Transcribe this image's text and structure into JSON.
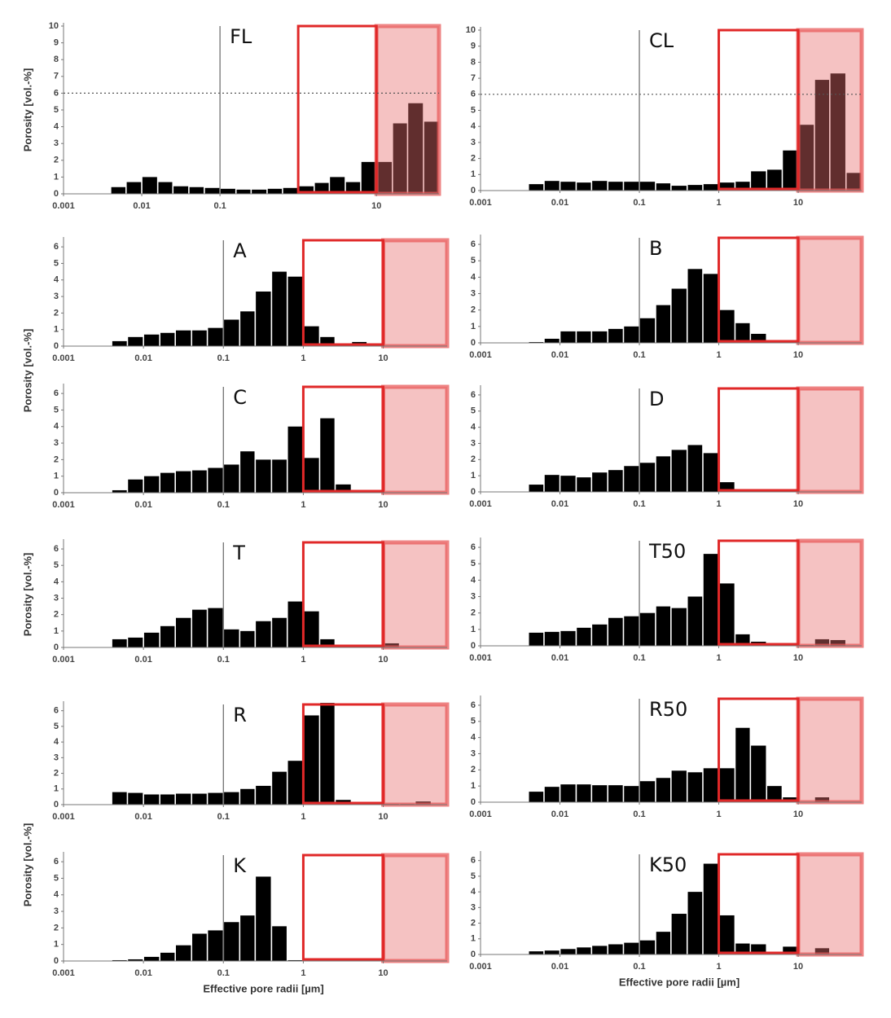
{
  "chart_data": [
    {
      "type": "histogram",
      "title": "FL",
      "y_label": "Porosity [vol.-%]",
      "color": "#000000",
      "bins": [
        0.004,
        0.0063,
        0.01,
        0.016,
        0.025,
        0.04,
        0.063,
        0.1,
        0.16,
        0.25,
        0.4,
        0.63,
        1,
        1.6,
        2.5,
        4,
        6.3,
        10,
        16,
        25,
        40,
        63
      ],
      "values": [
        0.4,
        0.7,
        1.0,
        0.7,
        0.45,
        0.4,
        0.35,
        0.3,
        0.25,
        0.25,
        0.3,
        0.35,
        0.45,
        0.65,
        1.0,
        0.7,
        1.9,
        1.9,
        4.2,
        5.4,
        4.3
      ],
      "xscale": "log",
      "xlim": [
        0.001,
        63
      ],
      "xticks": [
        0.001,
        0.01,
        0.1,
        10
      ],
      "ylim": [
        0,
        10
      ],
      "yticks": [
        0,
        1,
        2,
        3,
        4,
        5,
        6,
        7,
        8,
        9,
        10
      ],
      "hline": 6,
      "vline": 0.1,
      "highlight_xlim": [
        1,
        10
      ],
      "shade_xlim": [
        10,
        63
      ]
    },
    {
      "type": "histogram",
      "title": "CL",
      "color": "#000000",
      "bins": [
        0.004,
        0.0063,
        0.01,
        0.016,
        0.025,
        0.04,
        0.063,
        0.1,
        0.16,
        0.25,
        0.4,
        0.63,
        1,
        1.6,
        2.5,
        4,
        6.3,
        10,
        16,
        25,
        40,
        63
      ],
      "values": [
        0.4,
        0.6,
        0.55,
        0.5,
        0.6,
        0.55,
        0.55,
        0.55,
        0.45,
        0.3,
        0.35,
        0.4,
        0.5,
        0.55,
        1.2,
        1.3,
        2.5,
        4.1,
        6.9,
        7.3,
        1.1
      ],
      "xscale": "log",
      "xlim": [
        0.001,
        63
      ],
      "xticks": [
        0.001,
        0.01,
        0.1,
        1,
        10
      ],
      "ylim": [
        0,
        10
      ],
      "yticks": [
        0,
        1,
        2,
        3,
        4,
        5,
        6,
        7,
        8,
        9,
        10
      ],
      "hline": 6,
      "vline": 0.1,
      "highlight_xlim": [
        1,
        10
      ],
      "shade_xlim": [
        10,
        63
      ]
    },
    {
      "type": "histogram",
      "title": "A",
      "y_label": "Porosity [vol.-%]",
      "color": "#000000",
      "bins": [
        0.004,
        0.0063,
        0.01,
        0.016,
        0.025,
        0.04,
        0.063,
        0.1,
        0.16,
        0.25,
        0.4,
        0.63,
        1,
        1.6,
        2.5,
        4,
        6.3,
        10,
        16,
        25,
        40,
        63
      ],
      "values": [
        0.3,
        0.55,
        0.7,
        0.8,
        0.95,
        0.95,
        1.1,
        1.6,
        2.1,
        3.3,
        4.5,
        4.2,
        1.2,
        0.55,
        0.15,
        0.25,
        0.15,
        0,
        0,
        0,
        0
      ],
      "xscale": "log",
      "xlim": [
        0.001,
        63
      ],
      "xticks": [
        0.001,
        0.01,
        0.1,
        1,
        10
      ],
      "ylim": [
        0,
        6.4
      ],
      "yticks": [
        0,
        1,
        2,
        3,
        4,
        5,
        6
      ],
      "vline": 0.1,
      "highlight_xlim": [
        1,
        10
      ],
      "shade_xlim": [
        10,
        63
      ]
    },
    {
      "type": "histogram",
      "title": "B",
      "color": "#000000",
      "bins": [
        0.004,
        0.0063,
        0.01,
        0.016,
        0.025,
        0.04,
        0.063,
        0.1,
        0.16,
        0.25,
        0.4,
        0.63,
        1,
        1.6,
        2.5,
        4,
        6.3,
        10,
        16,
        25,
        40,
        63
      ],
      "values": [
        0.05,
        0.25,
        0.7,
        0.7,
        0.7,
        0.85,
        1.0,
        1.5,
        2.3,
        3.3,
        4.5,
        4.2,
        2.0,
        1.2,
        0.55,
        0.1,
        0.1,
        0,
        0,
        0,
        0
      ],
      "xscale": "log",
      "xlim": [
        0.001,
        63
      ],
      "xticks": [
        0.001,
        0.01,
        0.1,
        1,
        10
      ],
      "ylim": [
        0,
        6.4
      ],
      "yticks": [
        0,
        1,
        2,
        3,
        4,
        5,
        6
      ],
      "vline": 0.1,
      "highlight_xlim": [
        1,
        10
      ],
      "shade_xlim": [
        10,
        63
      ]
    },
    {
      "type": "histogram",
      "title": "C",
      "color": "#000000",
      "bins": [
        0.004,
        0.0063,
        0.01,
        0.016,
        0.025,
        0.04,
        0.063,
        0.1,
        0.16,
        0.25,
        0.4,
        0.63,
        1,
        1.6,
        2.5,
        4,
        6.3,
        10,
        16,
        25,
        40,
        63
      ],
      "values": [
        0.15,
        0.8,
        1.0,
        1.2,
        1.3,
        1.35,
        1.5,
        1.7,
        2.5,
        2.0,
        2.0,
        4.0,
        2.1,
        4.5,
        0.5,
        0.1,
        0.05,
        0,
        0,
        0,
        0
      ],
      "xscale": "log",
      "xlim": [
        0.001,
        63
      ],
      "xticks": [
        0.001,
        0.01,
        0.1,
        1,
        10
      ],
      "ylim": [
        0,
        6.4
      ],
      "yticks": [
        0,
        1,
        2,
        3,
        4,
        5,
        6
      ],
      "vline": 0.1,
      "highlight_xlim": [
        1,
        10
      ],
      "shade_xlim": [
        10,
        63
      ]
    },
    {
      "type": "histogram",
      "title": "D",
      "color": "#000000",
      "bins": [
        0.004,
        0.0063,
        0.01,
        0.016,
        0.025,
        0.04,
        0.063,
        0.1,
        0.16,
        0.25,
        0.4,
        0.63,
        1,
        1.6,
        2.5,
        4,
        6.3,
        10,
        16,
        25,
        40,
        63
      ],
      "values": [
        0.45,
        1.05,
        1.0,
        0.9,
        1.2,
        1.35,
        1.6,
        1.8,
        2.2,
        2.6,
        2.9,
        2.4,
        0.6,
        0.1,
        0.05,
        0.05,
        0.05,
        0,
        0,
        0,
        0
      ],
      "xscale": "log",
      "xlim": [
        0.001,
        63
      ],
      "xticks": [
        0.001,
        0.01,
        0.1,
        1,
        10
      ],
      "ylim": [
        0,
        6.4
      ],
      "yticks": [
        0,
        1,
        2,
        3,
        4,
        5,
        6
      ],
      "vline": 0.1,
      "highlight_xlim": [
        1,
        10
      ],
      "shade_xlim": [
        10,
        63
      ]
    },
    {
      "type": "histogram",
      "title": "T",
      "y_label": "Porosity [vol.-%]",
      "color": "#000000",
      "bins": [
        0.004,
        0.0063,
        0.01,
        0.016,
        0.025,
        0.04,
        0.063,
        0.1,
        0.16,
        0.25,
        0.4,
        0.63,
        1,
        1.6,
        2.5,
        4,
        6.3,
        10,
        16,
        25,
        40,
        63
      ],
      "values": [
        0.5,
        0.6,
        0.9,
        1.3,
        1.8,
        2.3,
        2.4,
        1.1,
        1.0,
        1.6,
        1.8,
        2.8,
        2.2,
        0.5,
        0.1,
        0.1,
        0.1,
        0.25,
        0,
        0,
        0
      ],
      "xscale": "log",
      "xlim": [
        0.001,
        63
      ],
      "xticks": [
        0.001,
        0.01,
        0.1,
        1,
        10
      ],
      "ylim": [
        0,
        6.4
      ],
      "yticks": [
        0,
        1,
        2,
        3,
        4,
        5,
        6
      ],
      "vline": 0.1,
      "highlight_xlim": [
        1,
        10
      ],
      "shade_xlim": [
        10,
        63
      ]
    },
    {
      "type": "histogram",
      "title": "T50",
      "color": "#000000",
      "bins": [
        0.004,
        0.0063,
        0.01,
        0.016,
        0.025,
        0.04,
        0.063,
        0.1,
        0.16,
        0.25,
        0.4,
        0.63,
        1,
        1.6,
        2.5,
        4,
        6.3,
        10,
        16,
        25,
        40,
        63
      ],
      "values": [
        0.8,
        0.85,
        0.9,
        1.1,
        1.3,
        1.7,
        1.8,
        2.0,
        2.4,
        2.3,
        3.0,
        5.6,
        3.8,
        0.7,
        0.25,
        0.1,
        0.1,
        0.05,
        0.4,
        0.35,
        0
      ],
      "xscale": "log",
      "xlim": [
        0.001,
        63
      ],
      "xticks": [
        0.001,
        0.01,
        0.1,
        1,
        10
      ],
      "ylim": [
        0,
        6.4
      ],
      "yticks": [
        0,
        1,
        2,
        3,
        4,
        5,
        6
      ],
      "vline": 0.1,
      "highlight_xlim": [
        1,
        10
      ],
      "shade_xlim": [
        10,
        63
      ]
    },
    {
      "type": "histogram",
      "title": "R",
      "color": "#000000",
      "bins": [
        0.004,
        0.0063,
        0.01,
        0.016,
        0.025,
        0.04,
        0.063,
        0.1,
        0.16,
        0.25,
        0.4,
        0.63,
        1,
        1.6,
        2.5,
        4,
        6.3,
        10,
        16,
        25,
        40,
        63
      ],
      "values": [
        0.8,
        0.75,
        0.65,
        0.65,
        0.7,
        0.7,
        0.75,
        0.8,
        1.0,
        1.2,
        2.1,
        2.8,
        5.7,
        6.5,
        0.3,
        0.1,
        0.1,
        0.05,
        0.05,
        0.2,
        0
      ],
      "xscale": "log",
      "xlim": [
        0.001,
        63
      ],
      "xticks": [
        0.001,
        0.01,
        0.1,
        1,
        10
      ],
      "ylim": [
        0,
        6.4
      ],
      "yticks": [
        0,
        1,
        2,
        3,
        4,
        5,
        6
      ],
      "vline": 0.1,
      "highlight_xlim": [
        1,
        10
      ],
      "shade_xlim": [
        10,
        63
      ]
    },
    {
      "type": "histogram",
      "title": "R50",
      "color": "#000000",
      "bins": [
        0.004,
        0.0063,
        0.01,
        0.016,
        0.025,
        0.04,
        0.063,
        0.1,
        0.16,
        0.25,
        0.4,
        0.63,
        1,
        1.6,
        2.5,
        4,
        6.3,
        10,
        16,
        25,
        40,
        63
      ],
      "values": [
        0.65,
        0.95,
        1.1,
        1.1,
        1.05,
        1.05,
        1.0,
        1.3,
        1.5,
        1.95,
        1.85,
        2.1,
        2.1,
        4.6,
        3.5,
        1.0,
        0.3,
        0,
        0.3,
        0,
        0
      ],
      "xscale": "log",
      "xlim": [
        0.001,
        63
      ],
      "xticks": [
        0.001,
        0.01,
        0.1,
        1,
        10
      ],
      "ylim": [
        0,
        6.4
      ],
      "yticks": [
        0,
        1,
        2,
        3,
        4,
        5,
        6
      ],
      "vline": 0.1,
      "highlight_xlim": [
        1,
        10
      ],
      "shade_xlim": [
        10,
        63
      ]
    },
    {
      "type": "histogram",
      "title": "K",
      "y_label": "Porosity [vol.-%]",
      "x_label": "Effective pore radii [µm]",
      "color": "#000000",
      "bins": [
        0.004,
        0.0063,
        0.01,
        0.016,
        0.025,
        0.04,
        0.063,
        0.1,
        0.16,
        0.25,
        0.4,
        0.63,
        1,
        1.6,
        2.5,
        4,
        6.3,
        10,
        16,
        25,
        40,
        63
      ],
      "values": [
        0.05,
        0.1,
        0.25,
        0.5,
        0.95,
        1.65,
        1.85,
        2.35,
        2.75,
        5.1,
        2.1,
        0.05,
        0,
        0,
        0,
        0,
        0,
        0,
        0,
        0,
        0
      ],
      "xscale": "log",
      "xlim": [
        0.001,
        63
      ],
      "xticks": [
        0.001,
        0.01,
        0.1,
        1,
        10
      ],
      "ylim": [
        0,
        6.4
      ],
      "yticks": [
        0,
        1,
        2,
        3,
        4,
        5,
        6
      ],
      "vline": 0.1,
      "highlight_xlim": [
        1,
        10
      ],
      "shade_xlim": [
        10,
        63
      ]
    },
    {
      "type": "histogram",
      "title": "K50",
      "x_label": "Effective pore radii [µm]",
      "color": "#000000",
      "bins": [
        0.004,
        0.0063,
        0.01,
        0.016,
        0.025,
        0.04,
        0.063,
        0.1,
        0.16,
        0.25,
        0.4,
        0.63,
        1,
        1.6,
        2.5,
        4,
        6.3,
        10,
        16,
        25,
        40,
        63
      ],
      "values": [
        0.2,
        0.25,
        0.35,
        0.45,
        0.55,
        0.65,
        0.75,
        0.9,
        1.45,
        2.6,
        4.0,
        5.8,
        2.5,
        0.7,
        0.65,
        0.1,
        0.5,
        0,
        0.4,
        0,
        0
      ],
      "xscale": "log",
      "xlim": [
        0.001,
        63
      ],
      "xticks": [
        0.001,
        0.01,
        0.1,
        1,
        10
      ],
      "ylim": [
        0,
        6.4
      ],
      "yticks": [
        0,
        1,
        2,
        3,
        4,
        5,
        6
      ],
      "vline": 0.1,
      "highlight_xlim": [
        1,
        10
      ],
      "shade_xlim": [
        10,
        63
      ]
    }
  ]
}
